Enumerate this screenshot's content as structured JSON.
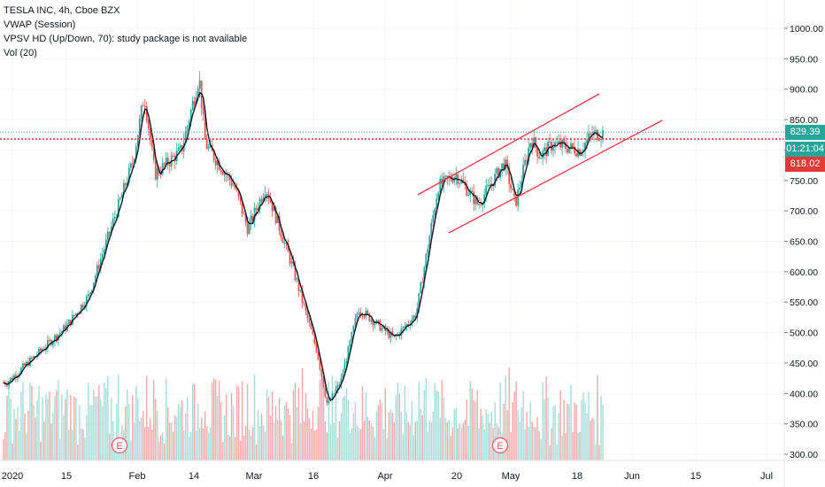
{
  "legend": {
    "symbol": "TESLA INC, 4h, Cboe BZX",
    "vwap": "VWAP (Session)",
    "vpsv": "VPSV HD (Up/Down, 70): study package is not available",
    "vol": "Vol (20)"
  },
  "price_tags": {
    "last": "829.39",
    "countdown": "01:21:04",
    "level": "818.02"
  },
  "colors": {
    "up": "#26a69a",
    "down": "#ef5350",
    "vol_up": "#a6dcd6",
    "vol_down": "#f4a7a6",
    "line": "#131722",
    "channel": "#f23645",
    "last_line": "#26a69a",
    "level_line": "#e53935",
    "grid": "#f0f3fa",
    "axis_text": "#131722",
    "earnings": "#f7525f"
  },
  "chart_data": {
    "type": "candlestick",
    "title": "TESLA INC, 4h, Cboe BZX",
    "ylim": [
      285,
      1020
    ],
    "y_ticks": [
      "1000.00",
      "950.00",
      "900.00",
      "850.00",
      "800.00",
      "750.00",
      "700.00",
      "650.00",
      "600.00",
      "550.00",
      "500.00",
      "450.00",
      "400.00",
      "350.00",
      "300.00"
    ],
    "x_ticks": [
      "2020",
      "15",
      "Feb",
      "14",
      "Mar",
      "16",
      "Apr",
      "20",
      "May",
      "18",
      "Jun",
      "15",
      "Jul"
    ],
    "last_price": 829.39,
    "horizontal_level": 818.02,
    "countdown": "01:21:04",
    "earnings_markers": [
      "E",
      "E"
    ],
    "close_path": [
      [
        "2020",
        418
      ],
      [
        "15",
        510
      ],
      [
        "22",
        560
      ],
      [
        "Feb",
        780
      ],
      [
        "Feb",
        890
      ],
      [
        "Feb",
        760
      ],
      [
        "14",
        800
      ],
      [
        "14",
        920
      ],
      [
        "14",
        810
      ],
      [
        "Mar",
        740
      ],
      [
        "Mar",
        670
      ],
      [
        "Mar",
        740
      ],
      [
        "Mar",
        610
      ],
      [
        "16",
        470
      ],
      [
        "16",
        380
      ],
      [
        "16",
        420
      ],
      [
        "Apr",
        540
      ],
      [
        "Apr",
        490
      ],
      [
        "Apr",
        530
      ],
      [
        "Apr",
        740
      ],
      [
        "20",
        760
      ],
      [
        "20",
        710
      ],
      [
        "May",
        780
      ],
      [
        "May",
        820
      ],
      [
        "May",
        710
      ],
      [
        "May",
        790
      ],
      [
        "18",
        810
      ],
      [
        "18",
        800
      ],
      [
        "18",
        825
      ],
      [
        "18",
        829
      ]
    ],
    "channel_upper": [
      [
        "Apr",
        725
      ],
      [
        "18",
        893
      ]
    ],
    "channel_lower": [
      [
        "Apr",
        653
      ],
      [
        "Jun",
        843
      ]
    ],
    "volume_note": "Vol (20) histogram, green on up bars, red on down bars",
    "grid": true
  }
}
